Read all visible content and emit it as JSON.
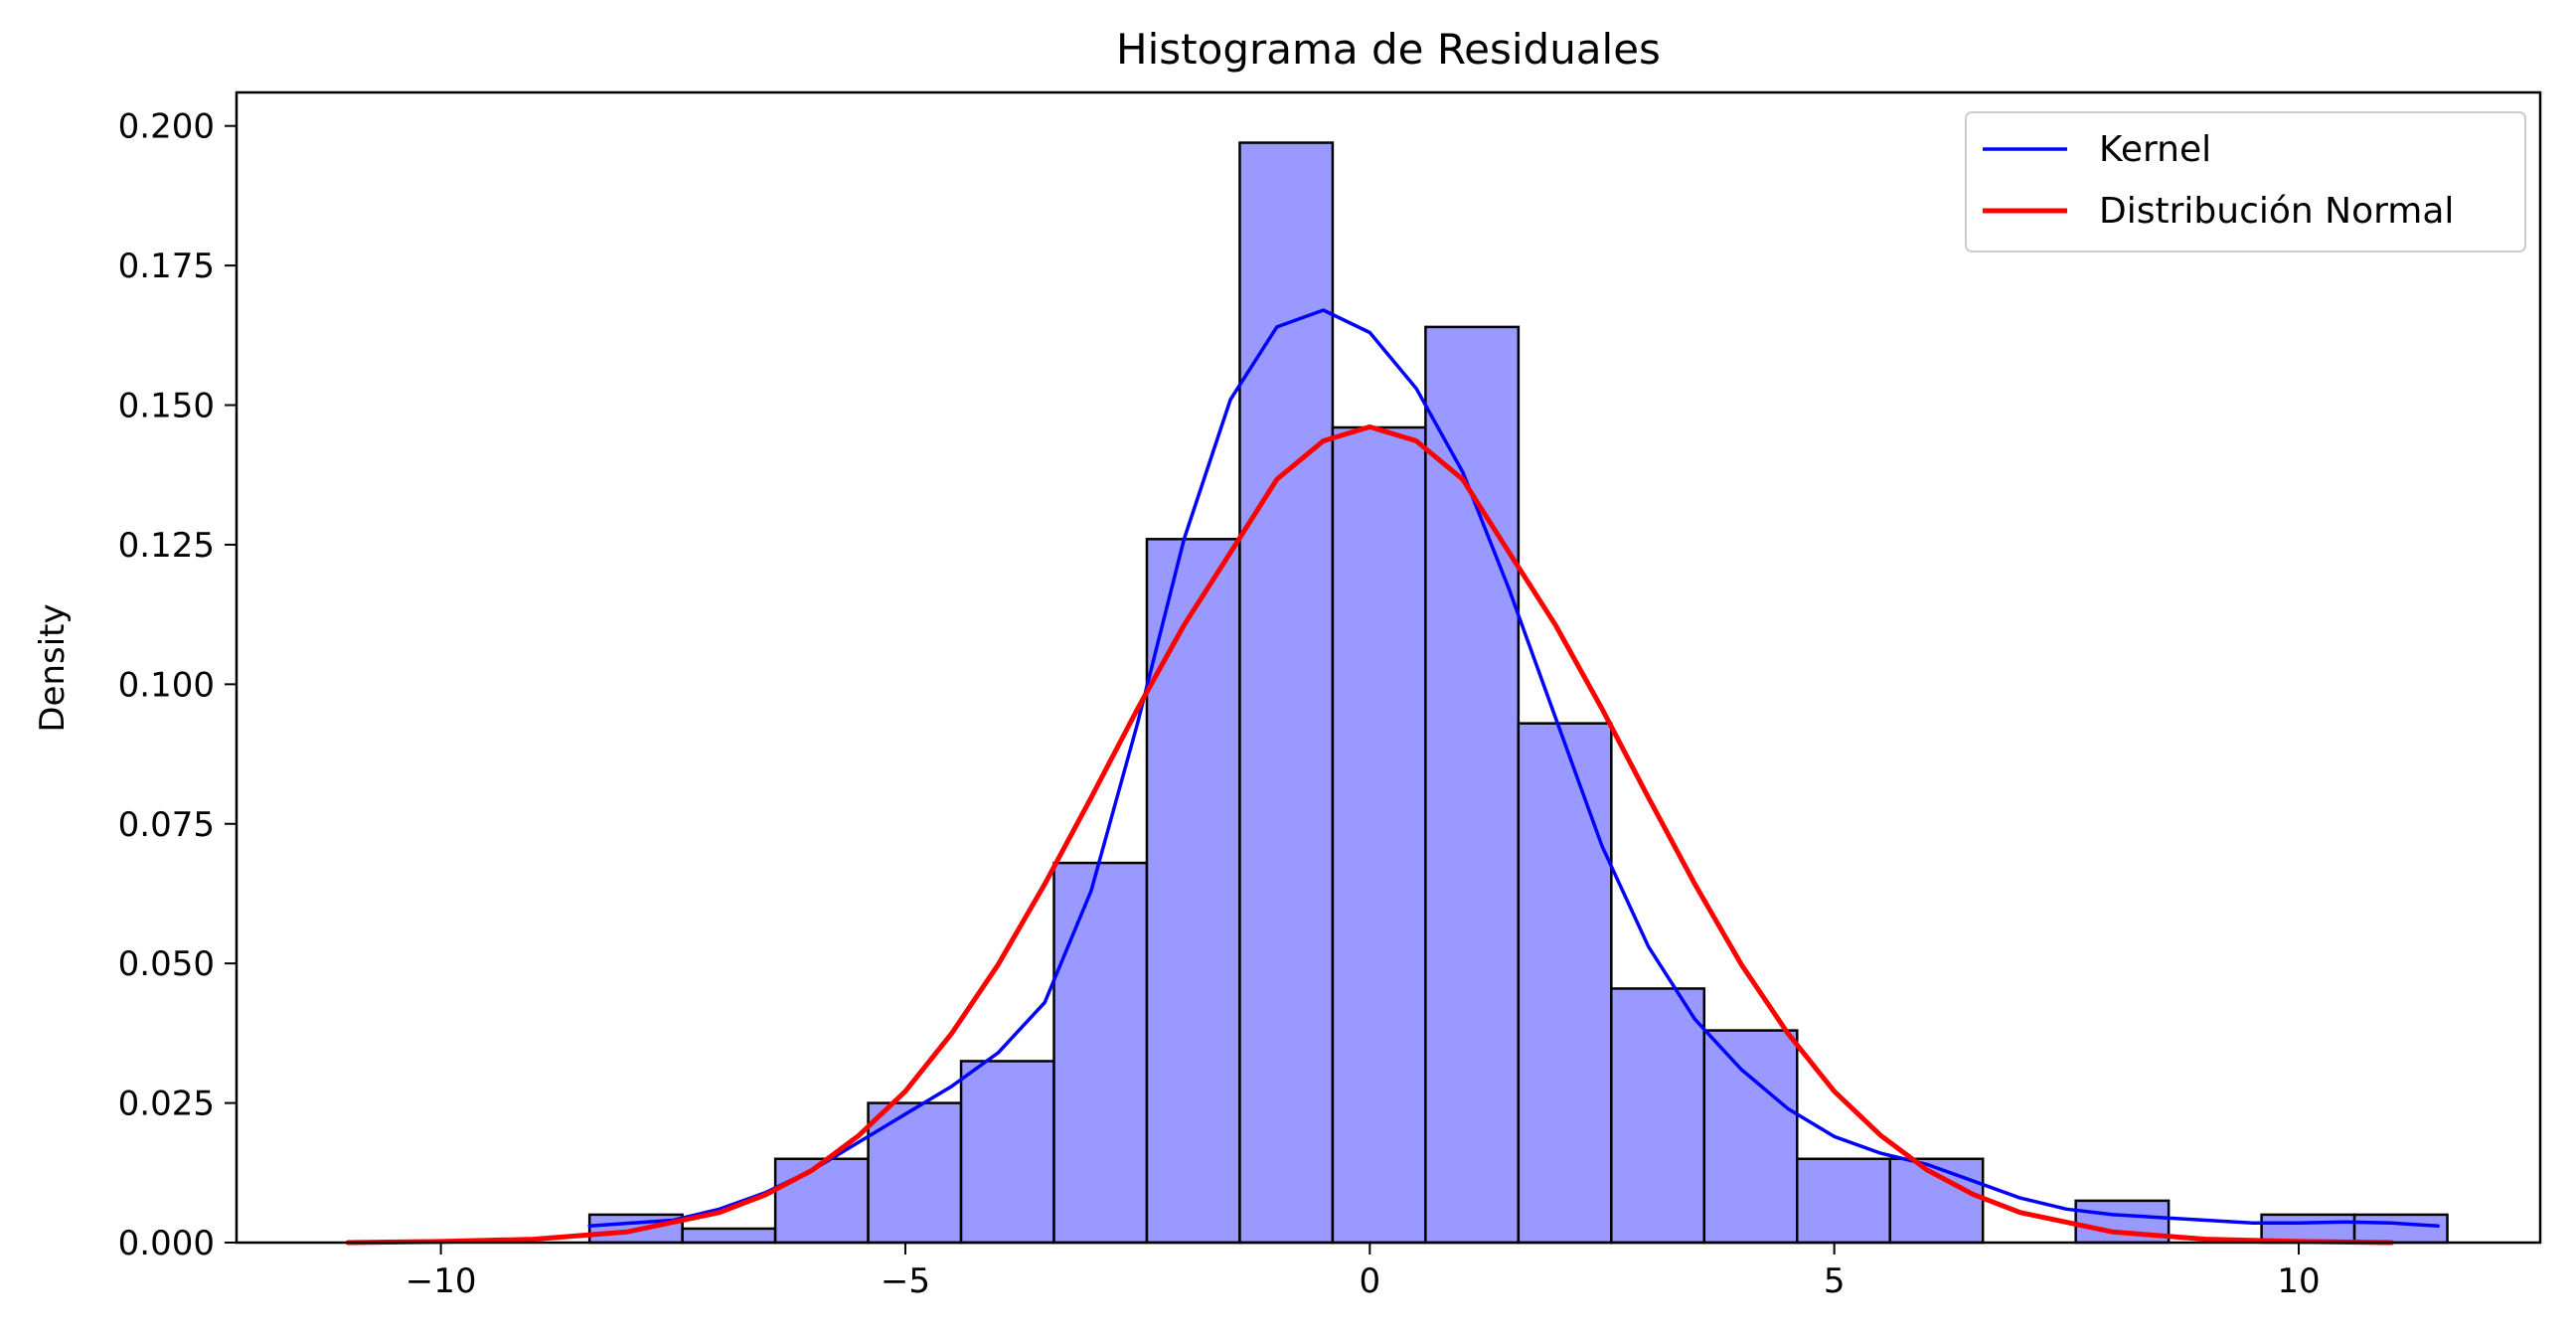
{
  "chart_data": {
    "type": "bar",
    "title": "Histograma de Residuales",
    "xlabel": "",
    "ylabel": "Density",
    "xlim": [
      -12.2,
      12.6
    ],
    "ylim": [
      0,
      0.206
    ],
    "xticks": [
      -10,
      -5,
      0,
      5,
      10
    ],
    "xtick_labels": [
      "−10",
      "−5",
      "0",
      "5",
      "10"
    ],
    "yticks": [
      0,
      0.025,
      0.05,
      0.075,
      0.1,
      0.125,
      0.15,
      0.175,
      0.2
    ],
    "ytick_labels": [
      "0.000",
      "0.025",
      "0.050",
      "0.075",
      "0.100",
      "0.125",
      "0.150",
      "0.175",
      "0.200"
    ],
    "grid": false,
    "legend_position": "top-right",
    "histogram": {
      "bin_edges": [
        -8.4,
        -7.4,
        -6.4,
        -5.4,
        -4.4,
        -3.4,
        -2.4,
        -1.4,
        -0.4,
        0.6,
        1.6,
        2.6,
        3.6,
        4.6,
        5.6,
        6.6,
        7.6,
        8.6,
        9.6,
        10.6,
        11.6
      ],
      "density": [
        0.005,
        0.0025,
        0.015,
        0.025,
        0.0325,
        0.068,
        0.126,
        0.197,
        0.146,
        0.164,
        0.093,
        0.0455,
        0.038,
        0.015,
        0.015,
        0,
        0.0075,
        0,
        0.005,
        0.005
      ],
      "fill_color": "#9999ff",
      "edge_color": "#000000"
    },
    "series": [
      {
        "name": "Kernel",
        "color": "#0000ff",
        "x": [
          -8.4,
          -7.5,
          -7.0,
          -6.5,
          -6.0,
          -5.5,
          -5.0,
          -4.5,
          -4.0,
          -3.5,
          -3.0,
          -2.5,
          -2.0,
          -1.5,
          -1.0,
          -0.5,
          0.0,
          0.5,
          1.0,
          1.5,
          2.0,
          2.5,
          3.0,
          3.5,
          4.0,
          4.5,
          5.0,
          5.5,
          6.0,
          6.5,
          7.0,
          7.5,
          8.0,
          8.5,
          9.0,
          9.5,
          10.0,
          10.5,
          11.0,
          11.5
        ],
        "y": [
          0.003,
          0.004,
          0.006,
          0.009,
          0.013,
          0.018,
          0.023,
          0.028,
          0.034,
          0.043,
          0.063,
          0.093,
          0.126,
          0.151,
          0.164,
          0.167,
          0.163,
          0.153,
          0.138,
          0.117,
          0.094,
          0.071,
          0.053,
          0.04,
          0.031,
          0.024,
          0.019,
          0.016,
          0.014,
          0.011,
          0.008,
          0.006,
          0.005,
          0.0045,
          0.004,
          0.0035,
          0.0035,
          0.0037,
          0.0035,
          0.003
        ]
      },
      {
        "name": "Distribución Normal",
        "color": "#ff0000",
        "mean": 0,
        "std": 2.73,
        "x_range": [
          -11,
          11
        ],
        "x": [
          -11.0,
          -10.0,
          -9.0,
          -8.0,
          -7.0,
          -6.5,
          -6.0,
          -5.5,
          -5.0,
          -4.5,
          -4.0,
          -3.5,
          -3.0,
          -2.5,
          -2.0,
          -1.5,
          -1.0,
          -0.5,
          0.0,
          0.5,
          1.0,
          1.5,
          2.0,
          2.5,
          3.0,
          3.5,
          4.0,
          4.5,
          5.0,
          5.5,
          6.0,
          6.5,
          7.0,
          8.0,
          9.0,
          10.0,
          11.0
        ],
        "y": [
          0.0,
          0.0002,
          0.0006,
          0.0019,
          0.0054,
          0.0086,
          0.013,
          0.0192,
          0.0271,
          0.0375,
          0.0498,
          0.0642,
          0.0797,
          0.0956,
          0.1106,
          0.1236,
          0.1367,
          0.1436,
          0.1461,
          0.1436,
          0.1367,
          0.1236,
          0.1106,
          0.0956,
          0.0797,
          0.0642,
          0.0498,
          0.0375,
          0.0271,
          0.0192,
          0.013,
          0.0086,
          0.0054,
          0.0019,
          0.0006,
          0.0002,
          0.0
        ]
      }
    ]
  }
}
